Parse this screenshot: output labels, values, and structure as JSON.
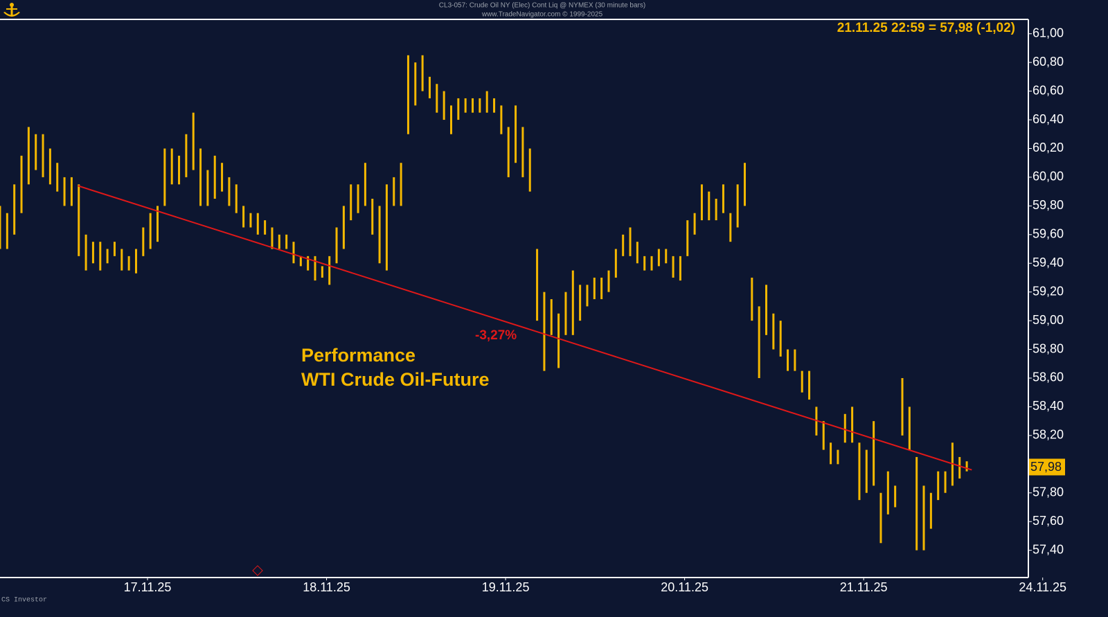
{
  "chart_data": {
    "type": "range-bar",
    "header": [
      "CL3-057:  Crude Oil NY (Elec) Cont Liq @ NYMEX  (30 minute bars)",
      "www.TradeNavigator.com © 1999-2025"
    ],
    "quote": "21.11.25 22:59 = 57,98 (-1,02)",
    "title": [
      "Performance",
      "WTI Crude Oil-Future"
    ],
    "annotation": "-3,27%",
    "footer": "CS Investor",
    "color": "#f5b800",
    "xlim": [
      0,
      143.6
    ],
    "xticks": [
      {
        "value": 20.6,
        "label": "17.11.25"
      },
      {
        "value": 45.6,
        "label": "18.11.25"
      },
      {
        "value": 70.6,
        "label": "19.11.25"
      },
      {
        "value": 95.6,
        "label": "20.11.25"
      },
      {
        "value": 120.6,
        "label": "21.11.25"
      },
      {
        "value": 145.6,
        "label": "24.11.25"
      }
    ],
    "ylim": [
      57.21,
      61.1
    ],
    "yticks": [
      {
        "value": 61.0,
        "label": "61,00"
      },
      {
        "value": 60.8,
        "label": "60,80"
      },
      {
        "value": 60.6,
        "label": "60,60"
      },
      {
        "value": 60.4,
        "label": "60,40"
      },
      {
        "value": 60.2,
        "label": "60,20"
      },
      {
        "value": 60.0,
        "label": "60,00"
      },
      {
        "value": 59.8,
        "label": "59,80"
      },
      {
        "value": 59.6,
        "label": "59,60"
      },
      {
        "value": 59.4,
        "label": "59,40"
      },
      {
        "value": 59.2,
        "label": "59,20"
      },
      {
        "value": 59.0,
        "label": "59,00"
      },
      {
        "value": 58.8,
        "label": "58,80"
      },
      {
        "value": 58.6,
        "label": "58,60"
      },
      {
        "value": 58.4,
        "label": "58,40"
      },
      {
        "value": 58.2,
        "label": "58,20"
      },
      {
        "value": 57.8,
        "label": "57,80"
      },
      {
        "value": 57.6,
        "label": "57,60"
      },
      {
        "value": 57.4,
        "label": "57,40"
      }
    ],
    "last_price": {
      "value": 57.98,
      "label": "57,98"
    },
    "high": [
      59.8,
      59.75,
      59.95,
      60.15,
      60.35,
      60.3,
      60.3,
      60.2,
      60.1,
      60.0,
      60.0,
      59.95,
      59.6,
      59.55,
      59.55,
      59.5,
      59.55,
      59.5,
      59.45,
      59.5,
      59.65,
      59.75,
      59.8,
      60.2,
      60.2,
      60.15,
      60.3,
      60.45,
      60.2,
      60.05,
      60.15,
      60.1,
      60.0,
      59.95,
      59.8,
      59.75,
      59.75,
      59.7,
      59.65,
      59.6,
      59.6,
      59.55,
      59.45,
      59.45,
      59.45,
      59.38,
      59.45,
      59.65,
      59.8,
      59.95,
      59.95,
      60.1,
      59.85,
      59.8,
      59.95,
      60.0,
      60.1,
      60.85,
      60.8,
      60.85,
      60.7,
      60.65,
      60.6,
      60.5,
      60.55,
      60.55,
      60.55,
      60.55,
      60.6,
      60.55,
      60.5,
      60.35,
      60.5,
      60.35,
      60.2,
      59.5,
      59.2,
      59.15,
      59.05,
      59.2,
      59.35,
      59.25,
      59.25,
      59.3,
      59.3,
      59.35,
      59.5,
      59.6,
      59.65,
      59.55,
      59.45,
      59.45,
      59.5,
      59.5,
      59.45,
      59.45,
      59.7,
      59.75,
      59.95,
      59.9,
      59.85,
      59.95,
      59.75,
      59.95,
      60.1,
      59.3,
      59.1,
      59.25,
      59.05,
      59.0,
      58.8,
      58.8,
      58.65,
      58.65,
      58.4,
      58.3,
      58.15,
      58.1,
      58.35,
      58.4,
      58.15,
      58.1,
      58.3,
      57.8,
      57.95,
      57.85,
      58.6,
      58.4,
      58.05,
      57.85,
      57.8,
      57.95,
      57.95,
      58.15,
      58.05,
      58.02
    ],
    "low": [
      59.5,
      59.5,
      59.6,
      59.75,
      59.95,
      60.05,
      60.0,
      59.95,
      59.9,
      59.8,
      59.8,
      59.45,
      59.35,
      59.4,
      59.35,
      59.4,
      59.45,
      59.35,
      59.35,
      59.33,
      59.45,
      59.5,
      59.55,
      59.8,
      59.95,
      59.95,
      60.0,
      60.05,
      59.8,
      59.8,
      59.85,
      59.9,
      59.8,
      59.75,
      59.65,
      59.65,
      59.6,
      59.6,
      59.5,
      59.5,
      59.5,
      59.4,
      59.38,
      59.35,
      59.28,
      59.3,
      59.25,
      59.4,
      59.5,
      59.7,
      59.75,
      59.8,
      59.6,
      59.4,
      59.35,
      59.8,
      59.8,
      60.3,
      60.5,
      60.6,
      60.55,
      60.45,
      60.4,
      60.3,
      60.4,
      60.45,
      60.45,
      60.45,
      60.45,
      60.45,
      60.3,
      60.0,
      60.1,
      60.0,
      59.9,
      59.0,
      58.65,
      58.9,
      58.67,
      58.9,
      58.9,
      59.0,
      59.1,
      59.15,
      59.15,
      59.2,
      59.3,
      59.45,
      59.45,
      59.4,
      59.35,
      59.35,
      59.38,
      59.4,
      59.3,
      59.28,
      59.45,
      59.6,
      59.7,
      59.7,
      59.7,
      59.75,
      59.55,
      59.65,
      59.8,
      59.0,
      58.6,
      58.9,
      58.8,
      58.75,
      58.65,
      58.65,
      58.5,
      58.45,
      58.2,
      58.1,
      58.0,
      58.0,
      58.15,
      58.15,
      57.75,
      57.8,
      57.85,
      57.45,
      57.65,
      57.7,
      58.2,
      58.1,
      57.4,
      57.4,
      57.55,
      57.75,
      57.8,
      57.85,
      57.9,
      57.95
    ],
    "trendline": {
      "x": [
        10.9,
        135.7
      ],
      "y": [
        59.94,
        57.96
      ],
      "color": "#e01818"
    }
  }
}
